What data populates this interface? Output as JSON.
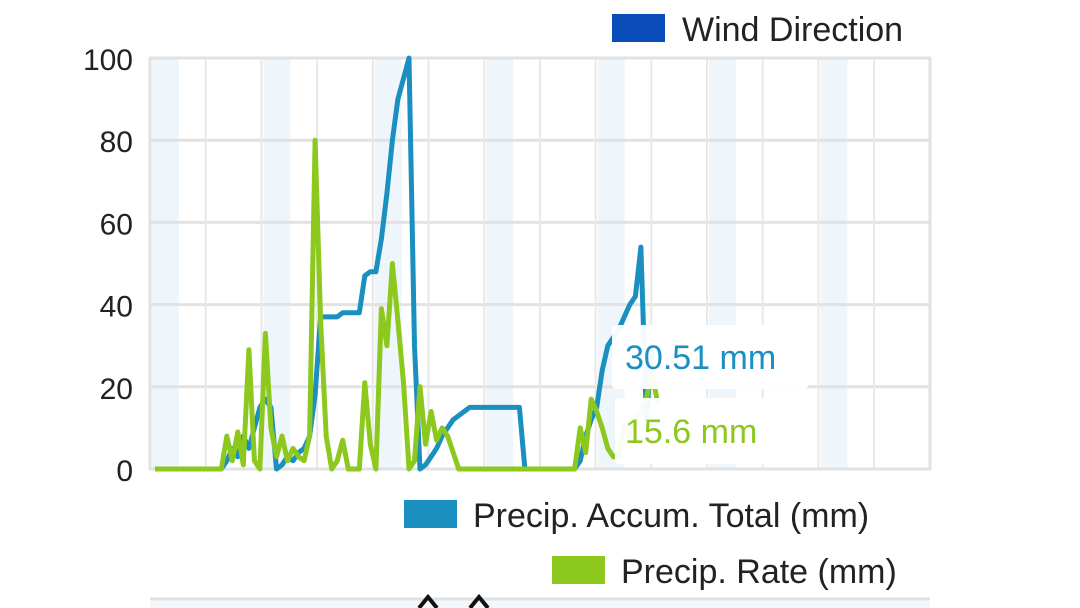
{
  "top_legend": {
    "label": "Wind Direction",
    "color": "#0a4db8"
  },
  "bottom_legend": [
    {
      "label": "Precip. Accum. Total (mm)",
      "color": "#1a8fc0"
    },
    {
      "label": "Precip. Rate (mm)",
      "color": "#8cc81e"
    }
  ],
  "readouts": {
    "accum": {
      "text": "30.51 mm",
      "color": "#1a8fc0"
    },
    "rate": {
      "text": "15.6 mm",
      "color": "#8cc81e"
    }
  },
  "chart_data": {
    "type": "line",
    "ylim": [
      0,
      100
    ],
    "yticks": [
      0,
      20,
      40,
      60,
      80,
      100
    ],
    "xlim": [
      0,
      140
    ],
    "grid": true,
    "series": [
      {
        "name": "Precip. Accum. Total (mm)",
        "color": "#1a8fc0",
        "points": [
          [
            0,
            0
          ],
          [
            12,
            0
          ],
          [
            13,
            2
          ],
          [
            14,
            5
          ],
          [
            15,
            3
          ],
          [
            16,
            8
          ],
          [
            17,
            5
          ],
          [
            18,
            10
          ],
          [
            19,
            15
          ],
          [
            20,
            17
          ],
          [
            21,
            15
          ],
          [
            22,
            0
          ],
          [
            23,
            1
          ],
          [
            24,
            3
          ],
          [
            25,
            2
          ],
          [
            26,
            4
          ],
          [
            27,
            5
          ],
          [
            28,
            8
          ],
          [
            29,
            18
          ],
          [
            30,
            37
          ],
          [
            31,
            37
          ],
          [
            32,
            37
          ],
          [
            33,
            37
          ],
          [
            34,
            38
          ],
          [
            35,
            38
          ],
          [
            36,
            38
          ],
          [
            37,
            38
          ],
          [
            38,
            47
          ],
          [
            39,
            48
          ],
          [
            40,
            48
          ],
          [
            41,
            56
          ],
          [
            42,
            67
          ],
          [
            43,
            80
          ],
          [
            44,
            90
          ],
          [
            45,
            95
          ],
          [
            46,
            100
          ],
          [
            47,
            30
          ],
          [
            48,
            0
          ],
          [
            49,
            1
          ],
          [
            50,
            3
          ],
          [
            51,
            5
          ],
          [
            52,
            8
          ],
          [
            53,
            10
          ],
          [
            54,
            12
          ],
          [
            55,
            13
          ],
          [
            56,
            14
          ],
          [
            57,
            15
          ],
          [
            64,
            15
          ],
          [
            65,
            15
          ],
          [
            66,
            15
          ],
          [
            67,
            0
          ],
          [
            71,
            0
          ],
          [
            76,
            0
          ],
          [
            77,
            2
          ],
          [
            78,
            8
          ],
          [
            79,
            12
          ],
          [
            80,
            15
          ],
          [
            81,
            24
          ],
          [
            82,
            30
          ],
          [
            83,
            32
          ],
          [
            84,
            34
          ],
          [
            85,
            37
          ],
          [
            86,
            40
          ],
          [
            87,
            42
          ],
          [
            88,
            54
          ],
          [
            89,
            12
          ],
          [
            90,
            30
          ]
        ]
      },
      {
        "name": "Precip. Rate (mm)",
        "color": "#8cc81e",
        "points": [
          [
            0,
            0
          ],
          [
            12,
            0
          ],
          [
            13,
            8
          ],
          [
            14,
            2
          ],
          [
            15,
            9
          ],
          [
            16,
            1
          ],
          [
            17,
            29
          ],
          [
            18,
            2
          ],
          [
            19,
            0
          ],
          [
            20,
            33
          ],
          [
            21,
            10
          ],
          [
            22,
            3
          ],
          [
            23,
            8
          ],
          [
            24,
            2
          ],
          [
            25,
            5
          ],
          [
            26,
            3
          ],
          [
            27,
            2
          ],
          [
            28,
            8
          ],
          [
            29,
            80
          ],
          [
            30,
            36
          ],
          [
            31,
            8
          ],
          [
            32,
            0
          ],
          [
            33,
            2
          ],
          [
            34,
            7
          ],
          [
            35,
            0
          ],
          [
            36,
            0
          ],
          [
            37,
            0
          ],
          [
            38,
            21
          ],
          [
            39,
            6
          ],
          [
            40,
            0
          ],
          [
            41,
            39
          ],
          [
            42,
            30
          ],
          [
            43,
            50
          ],
          [
            44,
            36
          ],
          [
            45,
            21
          ],
          [
            46,
            0
          ],
          [
            47,
            2
          ],
          [
            48,
            20
          ],
          [
            49,
            6
          ],
          [
            50,
            14
          ],
          [
            51,
            7
          ],
          [
            52,
            10
          ],
          [
            53,
            8
          ],
          [
            54,
            4
          ],
          [
            55,
            0
          ],
          [
            60,
            0
          ],
          [
            70,
            0
          ],
          [
            76,
            0
          ],
          [
            77,
            10
          ],
          [
            78,
            4
          ],
          [
            79,
            17
          ],
          [
            80,
            14
          ],
          [
            81,
            10
          ],
          [
            82,
            5
          ],
          [
            83,
            3
          ],
          [
            84,
            3
          ],
          [
            85,
            11
          ],
          [
            86,
            8
          ],
          [
            87,
            12
          ],
          [
            88,
            14
          ],
          [
            89,
            17
          ],
          [
            90,
            24
          ],
          [
            91,
            16
          ]
        ]
      }
    ]
  }
}
